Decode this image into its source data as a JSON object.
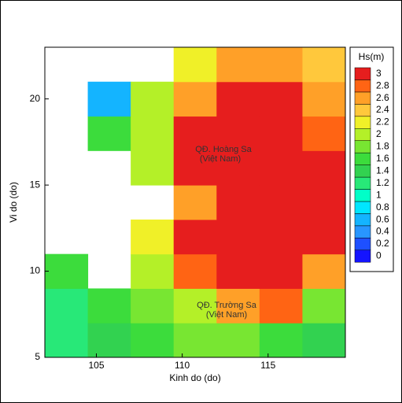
{
  "chart_data": {
    "type": "heatmap",
    "xlabel": "Kinh do (do)",
    "ylabel": "Vi do (do)",
    "xlim": [
      102,
      119.5
    ],
    "ylim": [
      5,
      23
    ],
    "xticks": [
      105,
      110,
      115
    ],
    "yticks": [
      5,
      10,
      15,
      20
    ],
    "x_edges": [
      102,
      104.5,
      107,
      109.5,
      112,
      114.5,
      117,
      119.5
    ],
    "y_edges": [
      5,
      7,
      9,
      11,
      13,
      15,
      17,
      19,
      21,
      23
    ],
    "z": [
      [
        1.2,
        1.4,
        1.6,
        1.8,
        1.8,
        1.6,
        1.4
      ],
      [
        1.2,
        1.6,
        1.8,
        2.0,
        2.6,
        2.8,
        1.8
      ],
      [
        1.6,
        null,
        2.0,
        2.8,
        3.0,
        3.0,
        2.6
      ],
      [
        null,
        null,
        2.2,
        3.0,
        3.0,
        3.0,
        3.0
      ],
      [
        null,
        null,
        null,
        2.6,
        3.0,
        3.0,
        3.0
      ],
      [
        null,
        null,
        2.0,
        3.0,
        3.0,
        3.0,
        3.0
      ],
      [
        null,
        1.6,
        2.0,
        3.0,
        3.0,
        3.0,
        2.8
      ],
      [
        null,
        0.6,
        2.0,
        2.6,
        3.0,
        3.0,
        2.6
      ],
      [
        null,
        null,
        null,
        2.2,
        2.6,
        2.6,
        2.4
      ]
    ],
    "colorbar_title": "Hs(m)",
    "colorbar_ticks": [
      0,
      0.2,
      0.4,
      0.6,
      0.8,
      1,
      1.2,
      1.4,
      1.6,
      1.8,
      2,
      2.2,
      2.4,
      2.6,
      2.8,
      3
    ],
    "colors": [
      "#1414ff",
      "#1e50ff",
      "#2896ff",
      "#14b4ff",
      "#00e6ff",
      "#00ffc8",
      "#28e878",
      "#32d250",
      "#3cdc3c",
      "#78e632",
      "#b4f028",
      "#f0f028",
      "#ffc83c",
      "#ffa028",
      "#ff6414",
      "#e61e1e"
    ],
    "annotations": [
      "QĐ. Hoàng Sa",
      "(Việt Nam)",
      "QĐ. Trường Sa",
      "(Việt Nam)"
    ]
  }
}
